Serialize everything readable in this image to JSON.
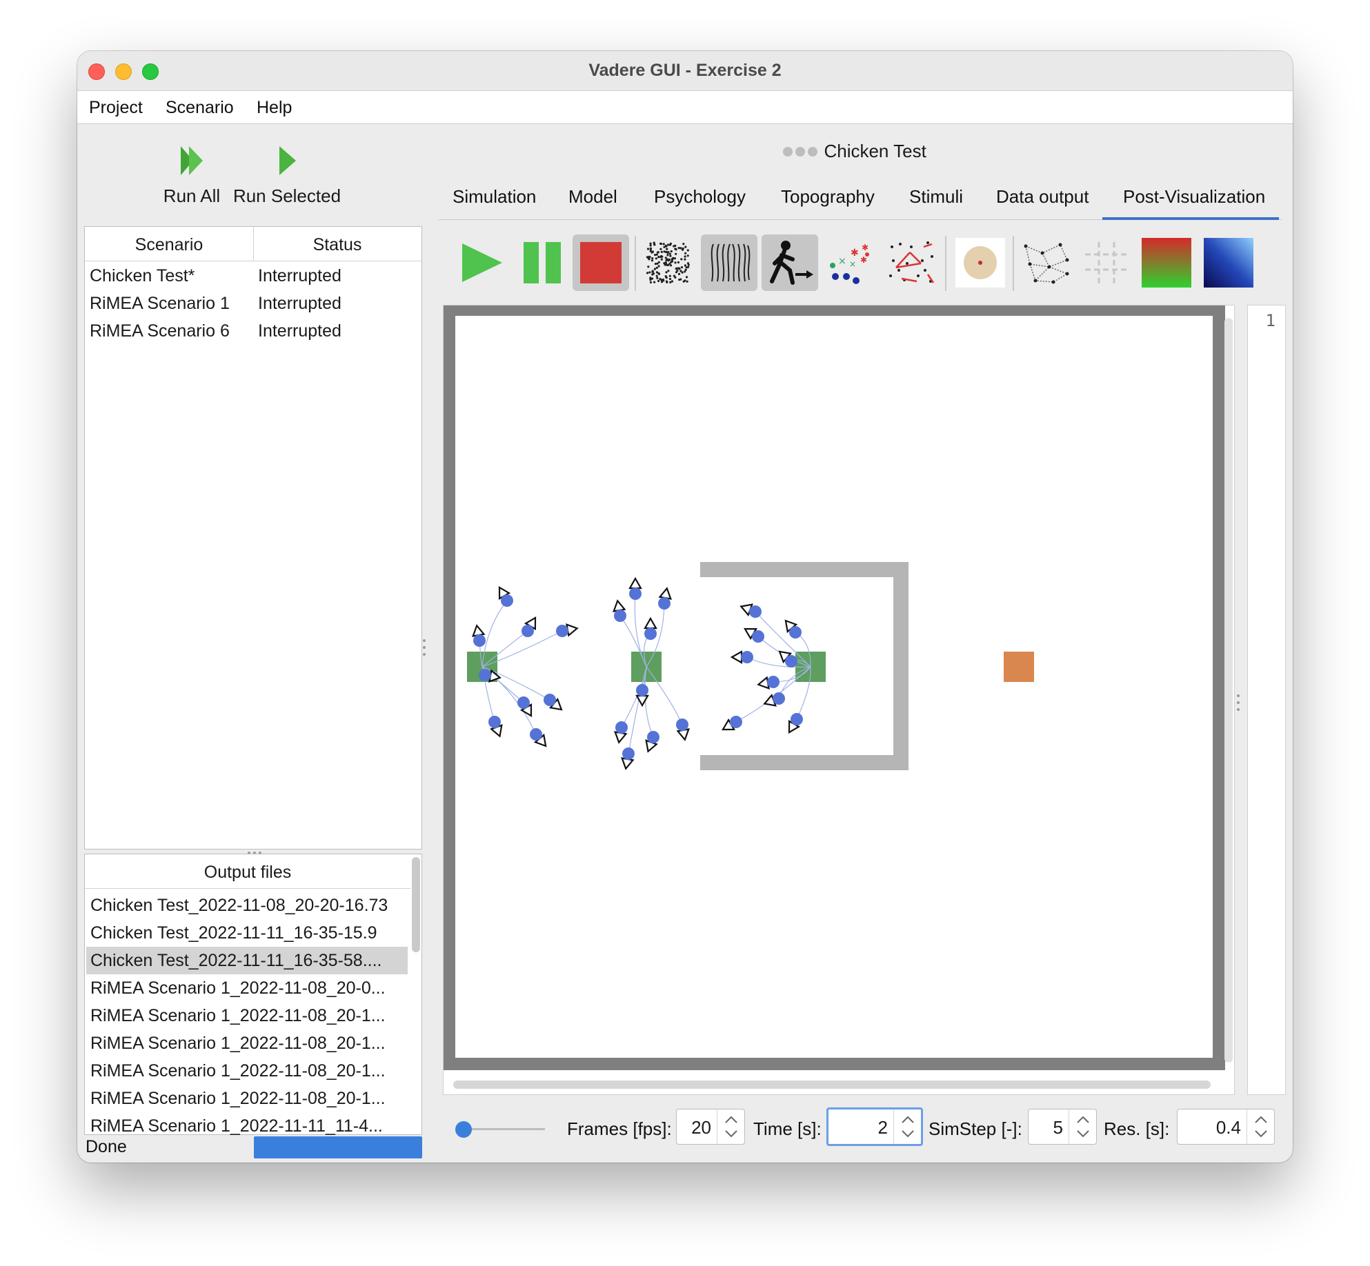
{
  "window": {
    "title": "Vadere GUI - Exercise 2"
  },
  "menu": {
    "items": [
      "Project",
      "Scenario",
      "Help"
    ]
  },
  "run": {
    "run_all": "Run All",
    "run_selected": "Run Selected"
  },
  "scenario_table": {
    "headers": [
      "Scenario",
      "Status"
    ],
    "rows": [
      {
        "name": "Chicken Test*",
        "status": "Interrupted"
      },
      {
        "name": "RiMEA Scenario 1",
        "status": "Interrupted"
      },
      {
        "name": "RiMEA Scenario 6",
        "status": "Interrupted"
      }
    ]
  },
  "output_files": {
    "header": "Output files",
    "selected_index": 2,
    "items": [
      "Chicken Test_2022-11-08_20-20-16.73",
      "Chicken Test_2022-11-11_16-35-15.9",
      "Chicken Test_2022-11-11_16-35-58....",
      "RiMEA Scenario 1_2022-11-08_20-0...",
      "RiMEA Scenario 1_2022-11-08_20-1...",
      "RiMEA Scenario 1_2022-11-08_20-1...",
      "RiMEA Scenario 1_2022-11-08_20-1...",
      "RiMEA Scenario 1_2022-11-08_20-1...",
      "RiMEA Scenario 1_2022-11-11_11-4..."
    ]
  },
  "scenario_title": "Chicken Test",
  "tabs": [
    "Simulation",
    "Model",
    "Psychology",
    "Topography",
    "Stimuli",
    "Data output",
    "Post-Visualization"
  ],
  "active_tab": "Post-Visualization",
  "line_number": "1",
  "controls": {
    "frames_label": "Frames [fps]:",
    "frames_value": "20",
    "time_label": "Time [s]:",
    "time_value": "2",
    "simstep_label": "SimStep [-]:",
    "simstep_value": "5",
    "res_label": "Res. [s]:",
    "res_value": "0.4",
    "slider_fraction": 0.0
  },
  "status": {
    "text": "Done"
  },
  "colors": {
    "accent": "#3b74c8",
    "pedestrian": "#5573d6",
    "source": "#5e9e5e",
    "target": "#d9874f",
    "obstacle": "#b5b5b5",
    "wall": "#7f7f7f"
  }
}
